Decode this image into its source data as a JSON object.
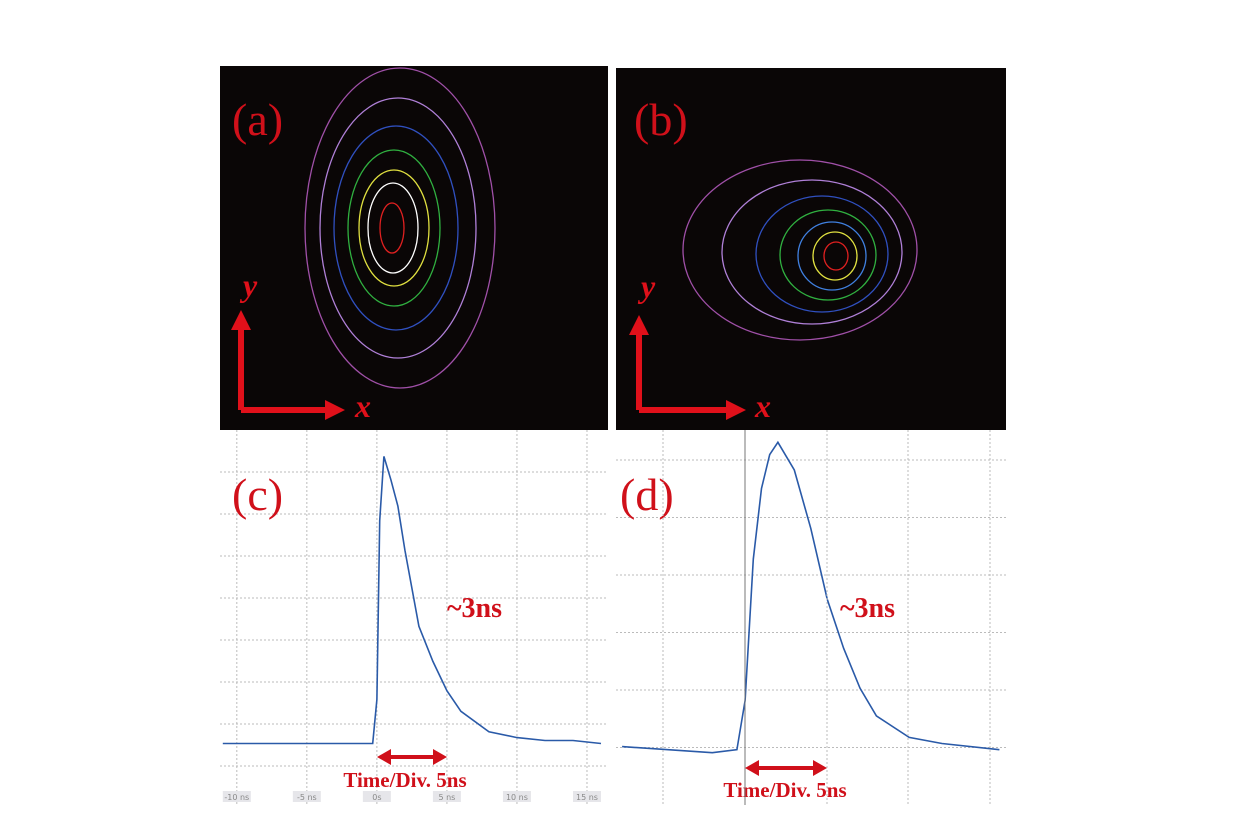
{
  "images": [
    {
      "label": "(a)",
      "y_label": "y",
      "x_label": "x"
    },
    {
      "label": "(b)",
      "y_label": "y",
      "x_label": "x"
    }
  ],
  "chart_data": [
    {
      "type": "line",
      "title": "(c)",
      "annotation": "~3ns",
      "scale_label": "Time/Div. 5ns",
      "color": "#2a5aa8",
      "x": [
        -11,
        -5,
        -1,
        -0.3,
        0,
        0.2,
        0.5,
        1,
        1.5,
        2,
        3,
        4,
        5,
        6,
        8,
        10,
        12,
        14,
        16
      ],
      "values": [
        0,
        0,
        0,
        0,
        0.15,
        0.76,
        0.98,
        0.9,
        0.81,
        0.66,
        0.4,
        0.28,
        0.18,
        0.11,
        0.04,
        0.02,
        0.01,
        0.01,
        0
      ],
      "xlim": [
        -11.2,
        16.5
      ],
      "ylim": [
        -0.21,
        1.07
      ],
      "xticks": [
        {
          "value": -10,
          "label": "-10 ns"
        },
        {
          "value": -5,
          "label": "-5 ns"
        },
        {
          "value": 0,
          "label": "0s"
        },
        {
          "value": 5,
          "label": "5 ns"
        },
        {
          "value": 10,
          "label": "10 ns"
        },
        {
          "value": 15,
          "label": "15 ns"
        }
      ],
      "grid": true
    },
    {
      "type": "line",
      "title": "(d)",
      "annotation": "~3ns",
      "scale_label": "Time/Div. 5ns",
      "color": "#2a5aa8",
      "x": [
        -7.5,
        -2,
        -0.5,
        0,
        0.5,
        1,
        1.5,
        2,
        3,
        4,
        5,
        6,
        7,
        8,
        10,
        12,
        15.5
      ],
      "values": [
        0.01,
        -0.01,
        0,
        0.16,
        0.62,
        0.85,
        0.96,
        1,
        0.91,
        0.72,
        0.49,
        0.33,
        0.2,
        0.11,
        0.04,
        0.02,
        0
      ],
      "xlim": [
        -7.87,
        15.9
      ],
      "ylim": [
        -0.18,
        1.04
      ],
      "grid": true
    }
  ]
}
